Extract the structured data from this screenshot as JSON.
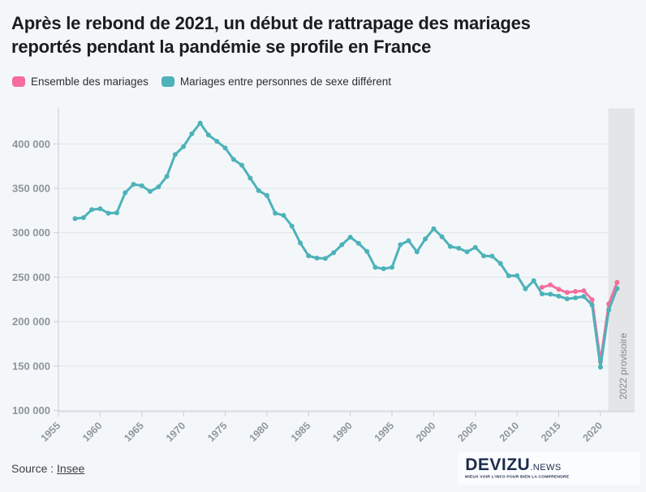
{
  "title": "Après le rebond de 2021, un début de rattrapage des mariages reportés pendant la pandémie se profile en France",
  "title_lines": [
    "Après le rebond de 2021, un début de rattrapage des mariages",
    "reportés pendant la pandémie se profile en France"
  ],
  "legend": [
    {
      "label": "Ensemble des mariages",
      "color": "#f66d9c"
    },
    {
      "label": "Mariages entre personnes de sexe différent",
      "color": "#4db2ba"
    }
  ],
  "footer": {
    "source_prefix": "Source : ",
    "source_link": "Insee"
  },
  "logo": {
    "name": "DEVIZU",
    "suffix": ".NEWS",
    "tagline": "MIEUX VOIR L'INFO POUR BIEN LA COMPRENDRE"
  },
  "chart_data": {
    "type": "line",
    "title": "Après le rebond de 2021, un début de rattrapage des mariages reportés pendant la pandémie se profile en France",
    "xlabel": "",
    "ylabel": "",
    "grid": true,
    "legend_position": "top-left",
    "xlim": [
      1955,
      2024.1
    ],
    "ylim": [
      100000,
      440000
    ],
    "x_tick_years": [
      1955,
      1960,
      1965,
      1970,
      1975,
      1980,
      1985,
      1990,
      1995,
      2000,
      2005,
      2010,
      2015,
      2020
    ],
    "y_ticks": [
      {
        "value": 100000,
        "label": "100 000"
      },
      {
        "value": 150000,
        "label": "150 000"
      },
      {
        "value": 200000,
        "label": "200 000"
      },
      {
        "value": 250000,
        "label": "250 000"
      },
      {
        "value": 300000,
        "label": "300 000"
      },
      {
        "value": 350000,
        "label": "350 000"
      },
      {
        "value": 400000,
        "label": "400 000"
      }
    ],
    "annotation_band": {
      "label": "2022 provisoire",
      "x_from": 2020.95,
      "x_to": 2024.1
    },
    "series": [
      {
        "name": "Ensemble des mariages",
        "color": "#f66d9c",
        "start_year": 2013,
        "values": [
          238600,
          241300,
          236300,
          232700,
          233900,
          234700,
          224700,
          155100,
          219900,
          244000
        ]
      },
      {
        "name": "Mariages entre personnes de sexe différent",
        "color": "#4db2ba",
        "start_year": 1957,
        "values": [
          316000,
          317000,
          326000,
          327000,
          322000,
          322500,
          345000,
          354500,
          353000,
          346500,
          351500,
          363500,
          388000,
          397000,
          411500,
          423500,
          410000,
          403000,
          395500,
          382500,
          376000,
          361500,
          347500,
          342000,
          322000,
          319500,
          307500,
          288500,
          274000,
          271500,
          271000,
          277500,
          286500,
          295000,
          288000,
          279000,
          261000,
          259500,
          261000,
          286500,
          291000,
          278500,
          293000,
          304500,
          295500,
          284500,
          282500,
          278500,
          283500,
          273900,
          273700,
          265400,
          251500,
          251700,
          236800,
          246000,
          231200,
          230800,
          228600,
          225600,
          226700,
          228300,
          218500,
          148700,
          213000,
          237200
        ]
      }
    ]
  }
}
